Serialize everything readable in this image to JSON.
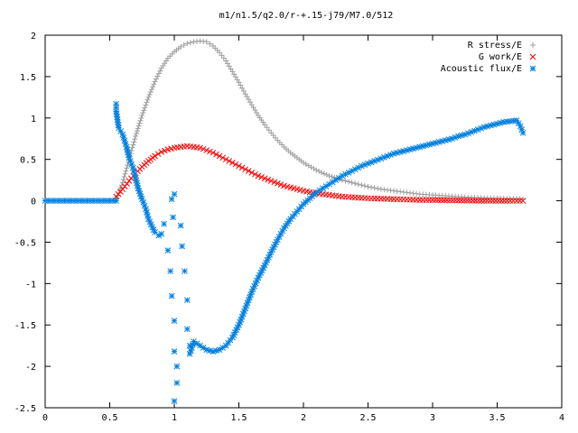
{
  "chart_data": {
    "type": "scatter",
    "title": "m1/n1.5/q2.0/r-+.15-j79/M7.0/512",
    "xlabel": "",
    "ylabel": "",
    "xlim": [
      0,
      4
    ],
    "ylim": [
      -2.5,
      2
    ],
    "x_ticks": [
      0,
      0.5,
      1,
      1.5,
      2,
      2.5,
      3,
      3.5,
      4
    ],
    "y_ticks": [
      -2.5,
      -2,
      -1.5,
      -1,
      -0.5,
      0,
      0.5,
      1,
      1.5,
      2
    ],
    "x_tick_labels": [
      "0",
      "0.5",
      "1",
      "1.5",
      "2",
      "2.5",
      "3",
      "3.5",
      "4"
    ],
    "y_tick_labels": [
      "-2.5",
      "-2",
      "-1.5",
      "-1",
      "-0.5",
      "0",
      "0.5",
      "1",
      "1.5",
      "2"
    ],
    "grid": false,
    "legend_position": "top-right",
    "series": [
      {
        "name": "R stress/E",
        "color": "#a0a0a0",
        "marker": "plus",
        "points": [
          [
            0.55,
            0.0
          ],
          [
            0.6,
            0.22
          ],
          [
            0.65,
            0.5
          ],
          [
            0.7,
            0.78
          ],
          [
            0.75,
            1.03
          ],
          [
            0.8,
            1.25
          ],
          [
            0.85,
            1.44
          ],
          [
            0.9,
            1.6
          ],
          [
            0.95,
            1.72
          ],
          [
            1.0,
            1.8
          ],
          [
            1.05,
            1.86
          ],
          [
            1.1,
            1.9
          ],
          [
            1.15,
            1.92
          ],
          [
            1.2,
            1.93
          ],
          [
            1.25,
            1.92
          ],
          [
            1.3,
            1.87
          ],
          [
            1.35,
            1.79
          ],
          [
            1.4,
            1.69
          ],
          [
            1.45,
            1.56
          ],
          [
            1.5,
            1.43
          ],
          [
            1.55,
            1.29
          ],
          [
            1.6,
            1.16
          ],
          [
            1.65,
            1.03
          ],
          [
            1.7,
            0.92
          ],
          [
            1.75,
            0.82
          ],
          [
            1.8,
            0.73
          ],
          [
            1.85,
            0.65
          ],
          [
            1.9,
            0.58
          ],
          [
            1.95,
            0.52
          ],
          [
            2.0,
            0.46
          ],
          [
            2.1,
            0.37
          ],
          [
            2.2,
            0.3
          ],
          [
            2.3,
            0.25
          ],
          [
            2.4,
            0.21
          ],
          [
            2.5,
            0.17
          ],
          [
            2.6,
            0.14
          ],
          [
            2.7,
            0.12
          ],
          [
            2.8,
            0.1
          ],
          [
            2.9,
            0.08
          ],
          [
            3.0,
            0.07
          ],
          [
            3.1,
            0.06
          ],
          [
            3.2,
            0.05
          ],
          [
            3.3,
            0.04
          ],
          [
            3.4,
            0.035
          ],
          [
            3.5,
            0.03
          ],
          [
            3.6,
            0.025
          ],
          [
            3.7,
            0.02
          ]
        ]
      },
      {
        "name": "G work/E",
        "color": "#ff0000",
        "marker": "cross",
        "points": [
          [
            0.55,
            0.05
          ],
          [
            0.6,
            0.14
          ],
          [
            0.65,
            0.24
          ],
          [
            0.7,
            0.33
          ],
          [
            0.75,
            0.41
          ],
          [
            0.8,
            0.48
          ],
          [
            0.85,
            0.54
          ],
          [
            0.9,
            0.59
          ],
          [
            0.95,
            0.62
          ],
          [
            1.0,
            0.64
          ],
          [
            1.05,
            0.65
          ],
          [
            1.1,
            0.66
          ],
          [
            1.15,
            0.65
          ],
          [
            1.2,
            0.64
          ],
          [
            1.25,
            0.61
          ],
          [
            1.3,
            0.58
          ],
          [
            1.35,
            0.54
          ],
          [
            1.4,
            0.5
          ],
          [
            1.45,
            0.46
          ],
          [
            1.5,
            0.42
          ],
          [
            1.55,
            0.38
          ],
          [
            1.6,
            0.34
          ],
          [
            1.65,
            0.3
          ],
          [
            1.7,
            0.27
          ],
          [
            1.75,
            0.24
          ],
          [
            1.8,
            0.21
          ],
          [
            1.85,
            0.18
          ],
          [
            1.9,
            0.16
          ],
          [
            1.95,
            0.14
          ],
          [
            2.0,
            0.12
          ],
          [
            2.1,
            0.09
          ],
          [
            2.2,
            0.07
          ],
          [
            2.3,
            0.05
          ],
          [
            2.4,
            0.04
          ],
          [
            2.5,
            0.03
          ],
          [
            2.6,
            0.025
          ],
          [
            2.7,
            0.02
          ],
          [
            2.8,
            0.015
          ],
          [
            2.9,
            0.01
          ],
          [
            3.0,
            0.01
          ],
          [
            3.2,
            0.005
          ],
          [
            3.4,
            0.0
          ],
          [
            3.6,
            0.0
          ],
          [
            3.7,
            0.0
          ]
        ]
      },
      {
        "name": "Acoustic flux/E",
        "color": "#0080e0",
        "marker": "star",
        "points": [
          [
            0.0,
            0.0
          ],
          [
            0.05,
            0.0
          ],
          [
            0.1,
            0.0
          ],
          [
            0.15,
            0.0
          ],
          [
            0.2,
            0.0
          ],
          [
            0.25,
            0.0
          ],
          [
            0.3,
            0.0
          ],
          [
            0.35,
            0.0
          ],
          [
            0.4,
            0.0
          ],
          [
            0.45,
            0.0
          ],
          [
            0.5,
            0.0
          ],
          [
            0.55,
            0.0
          ],
          [
            0.55,
            1.17
          ],
          [
            0.55,
            1.08
          ],
          [
            0.57,
            0.88
          ],
          [
            0.6,
            0.8
          ],
          [
            0.63,
            0.65
          ],
          [
            0.65,
            0.52
          ],
          [
            0.68,
            0.4
          ],
          [
            0.7,
            0.28
          ],
          [
            0.72,
            0.15
          ],
          [
            0.75,
            0.02
          ],
          [
            0.78,
            -0.1
          ],
          [
            0.8,
            -0.22
          ],
          [
            0.83,
            -0.32
          ],
          [
            0.85,
            -0.38
          ],
          [
            0.88,
            -0.42
          ],
          [
            0.9,
            -0.4
          ],
          [
            0.92,
            -0.28
          ],
          [
            0.95,
            -0.6
          ],
          [
            0.97,
            -0.85
          ],
          [
            0.98,
            -1.15
          ],
          [
            1.0,
            -1.45
          ],
          [
            1.0,
            -1.82
          ],
          [
            1.02,
            -2.0
          ],
          [
            1.02,
            -2.2
          ],
          [
            1.0,
            -2.42
          ],
          [
            0.99,
            -0.2
          ],
          [
            0.98,
            0.02
          ],
          [
            1.0,
            0.08
          ],
          [
            1.05,
            -0.3
          ],
          [
            1.06,
            -0.55
          ],
          [
            1.08,
            -0.85
          ],
          [
            1.1,
            -1.2
          ],
          [
            1.1,
            -1.55
          ],
          [
            1.12,
            -1.75
          ],
          [
            1.12,
            -1.85
          ],
          [
            1.15,
            -1.7
          ],
          [
            1.2,
            -1.75
          ],
          [
            1.25,
            -1.8
          ],
          [
            1.3,
            -1.82
          ],
          [
            1.35,
            -1.8
          ],
          [
            1.4,
            -1.75
          ],
          [
            1.45,
            -1.65
          ],
          [
            1.5,
            -1.5
          ],
          [
            1.55,
            -1.3
          ],
          [
            1.6,
            -1.1
          ],
          [
            1.65,
            -0.93
          ],
          [
            1.7,
            -0.78
          ],
          [
            1.75,
            -0.62
          ],
          [
            1.8,
            -0.47
          ],
          [
            1.85,
            -0.33
          ],
          [
            1.9,
            -0.22
          ],
          [
            1.95,
            -0.13
          ],
          [
            2.0,
            -0.04
          ],
          [
            2.05,
            0.03
          ],
          [
            2.1,
            0.1
          ],
          [
            2.15,
            0.15
          ],
          [
            2.2,
            0.2
          ],
          [
            2.25,
            0.25
          ],
          [
            2.3,
            0.3
          ],
          [
            2.35,
            0.34
          ],
          [
            2.4,
            0.38
          ],
          [
            2.45,
            0.42
          ],
          [
            2.5,
            0.45
          ],
          [
            2.55,
            0.48
          ],
          [
            2.6,
            0.51
          ],
          [
            2.65,
            0.54
          ],
          [
            2.7,
            0.57
          ],
          [
            2.75,
            0.59
          ],
          [
            2.8,
            0.61
          ],
          [
            2.85,
            0.63
          ],
          [
            2.9,
            0.65
          ],
          [
            2.95,
            0.67
          ],
          [
            3.0,
            0.69
          ],
          [
            3.05,
            0.71
          ],
          [
            3.1,
            0.73
          ],
          [
            3.15,
            0.75
          ],
          [
            3.2,
            0.78
          ],
          [
            3.25,
            0.8
          ],
          [
            3.3,
            0.83
          ],
          [
            3.35,
            0.86
          ],
          [
            3.4,
            0.89
          ],
          [
            3.45,
            0.91
          ],
          [
            3.5,
            0.93
          ],
          [
            3.55,
            0.95
          ],
          [
            3.6,
            0.96
          ],
          [
            3.65,
            0.97
          ],
          [
            3.68,
            0.9
          ],
          [
            3.7,
            0.82
          ]
        ]
      }
    ]
  }
}
